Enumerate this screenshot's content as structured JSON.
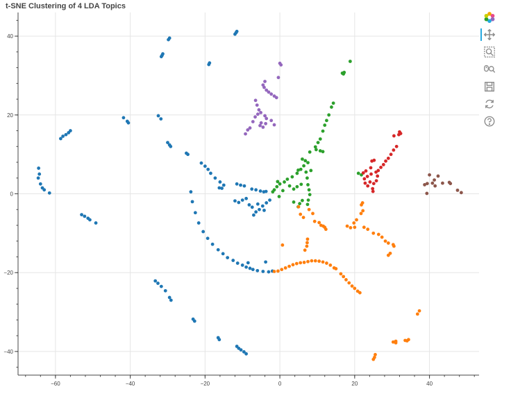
{
  "chart_title": "t-SNE Clustering of 4 LDA Topics",
  "toolbar": {
    "tools": [
      {
        "name": "bokeh-logo-icon"
      },
      {
        "name": "pan-tool-icon",
        "active": true
      },
      {
        "name": "box-zoom-tool-icon"
      },
      {
        "name": "wheel-zoom-tool-icon"
      },
      {
        "name": "save-tool-icon"
      },
      {
        "name": "reset-tool-icon"
      },
      {
        "name": "help-tool-icon"
      }
    ]
  },
  "colors": {
    "blue": "#1f77b4",
    "orange": "#ff7f0e",
    "green": "#2ca02c",
    "red": "#d62728",
    "purple": "#9467bd",
    "brown": "#8c564b",
    "grid": "#e5e5e5",
    "axis": "#444444"
  },
  "chart_data": {
    "type": "scatter",
    "title": "t-SNE Clustering of 4 LDA Topics",
    "xlabel": "",
    "ylabel": "",
    "xlim": [
      -70,
      54
    ],
    "ylim": [
      -46,
      46
    ],
    "xticks": [
      -60,
      -40,
      -20,
      0,
      20,
      40
    ],
    "yticks": [
      -40,
      -20,
      0,
      20,
      40
    ],
    "x_tick_labels": [
      "−60",
      "−40",
      "−20",
      "0",
      "20",
      "40"
    ],
    "y_tick_labels": [
      "−40",
      "−20",
      "0",
      "20",
      "40"
    ],
    "grid": true,
    "series": [
      {
        "color": "#1f77b4",
        "points": [
          [
            -11.5,
            41.2
          ],
          [
            -11.7,
            40.9
          ],
          [
            -12.0,
            40.5
          ],
          [
            -29.5,
            39.5
          ],
          [
            -29.8,
            39.1
          ],
          [
            -31.3,
            35.5
          ],
          [
            -31.5,
            35.1
          ],
          [
            -31.7,
            34.8
          ],
          [
            -18.8,
            33.2
          ],
          [
            -19.0,
            32.8
          ],
          [
            -41.8,
            19.3
          ],
          [
            -40.8,
            18.4
          ],
          [
            -40.5,
            18.0
          ],
          [
            -32.5,
            19.8
          ],
          [
            -31.8,
            19.0
          ],
          [
            -56.0,
            16.0
          ],
          [
            -56.5,
            15.5
          ],
          [
            -57.2,
            15.0
          ],
          [
            -58.0,
            14.6
          ],
          [
            -58.6,
            14.0
          ],
          [
            -30.0,
            13.0
          ],
          [
            -29.5,
            12.4
          ],
          [
            -29.2,
            12.0
          ],
          [
            -25.0,
            10.3
          ],
          [
            -24.6,
            10.0
          ],
          [
            -64.5,
            6.5
          ],
          [
            -64.3,
            5.0
          ],
          [
            -64.6,
            4.0
          ],
          [
            -64.0,
            2.5
          ],
          [
            -63.5,
            1.5
          ],
          [
            -63.0,
            1.0
          ],
          [
            -61.6,
            0.2
          ],
          [
            -21.0,
            7.8
          ],
          [
            -20.0,
            7.0
          ],
          [
            -19.2,
            6.2
          ],
          [
            -18.5,
            5.2
          ],
          [
            -17.3,
            4.0
          ],
          [
            -16.0,
            3.0
          ],
          [
            -15.0,
            2.2
          ],
          [
            -16.2,
            1.5
          ],
          [
            -15.5,
            1.4
          ],
          [
            -11.5,
            2.5
          ],
          [
            -10.5,
            2.2
          ],
          [
            -9.5,
            2.0
          ],
          [
            -7.5,
            1.2
          ],
          [
            -6.4,
            1.0
          ],
          [
            -5.2,
            0.7
          ],
          [
            -4.3,
            0.5
          ],
          [
            -3.7,
            0.6
          ],
          [
            -12.0,
            -1.8
          ],
          [
            -11.0,
            -2.2
          ],
          [
            -10.0,
            -1.6
          ],
          [
            -9.0,
            -1.2
          ],
          [
            -8.2,
            -2.8
          ],
          [
            -7.4,
            -3.4
          ],
          [
            -6.4,
            -4.6
          ],
          [
            -5.5,
            -4.0
          ],
          [
            -4.6,
            -3.1
          ],
          [
            -3.6,
            -2.3
          ],
          [
            -2.7,
            -1.6
          ],
          [
            -5.9,
            -2.6
          ],
          [
            -4.2,
            -4.2
          ],
          [
            -7.0,
            -5.4
          ],
          [
            -23.8,
            0.5
          ],
          [
            -23.4,
            -2.0
          ],
          [
            -22.6,
            -4.8
          ],
          [
            -21.7,
            -7.4
          ],
          [
            -20.5,
            -9.6
          ],
          [
            -19.3,
            -11.3
          ],
          [
            -18.0,
            -12.8
          ],
          [
            -16.5,
            -14.2
          ],
          [
            -15.2,
            -15.2
          ],
          [
            -14.0,
            -16.2
          ],
          [
            -12.5,
            -16.9
          ],
          [
            -11.3,
            -17.6
          ],
          [
            -10.0,
            -18.1
          ],
          [
            -9.0,
            -18.6
          ],
          [
            -8.0,
            -18.9
          ],
          [
            -7.2,
            -19.2
          ],
          [
            -6.0,
            -19.5
          ],
          [
            -4.5,
            -19.7
          ],
          [
            -3.0,
            -19.8
          ],
          [
            -2.0,
            -19.6
          ],
          [
            -8.5,
            -17.5
          ],
          [
            -3.8,
            -17.3
          ],
          [
            -53.0,
            -5.3
          ],
          [
            -52.2,
            -5.7
          ],
          [
            -51.3,
            -6.2
          ],
          [
            -50.8,
            -6.6
          ],
          [
            -49.2,
            -7.4
          ],
          [
            -33.3,
            -22.1
          ],
          [
            -32.6,
            -22.7
          ],
          [
            -31.7,
            -23.5
          ],
          [
            -30.6,
            -24.6
          ],
          [
            -29.5,
            -26.3
          ],
          [
            -29.1,
            -27.0
          ],
          [
            -23.2,
            -31.8
          ],
          [
            -22.8,
            -32.3
          ],
          [
            -16.5,
            -36.5
          ],
          [
            -16.2,
            -37.0
          ],
          [
            -11.5,
            -38.7
          ],
          [
            -11.0,
            -39.2
          ],
          [
            -10.4,
            -39.6
          ],
          [
            -9.6,
            -40.1
          ],
          [
            -9.0,
            -40.6
          ]
        ]
      },
      {
        "color": "#9467bd",
        "points": [
          [
            0.0,
            33.1
          ],
          [
            0.3,
            32.7
          ],
          [
            -0.4,
            29.5
          ],
          [
            -4.0,
            28.5
          ],
          [
            -4.5,
            27.6
          ],
          [
            -4.2,
            27.0
          ],
          [
            -3.6,
            26.3
          ],
          [
            -3.0,
            25.8
          ],
          [
            -2.3,
            25.3
          ],
          [
            -1.5,
            24.8
          ],
          [
            -0.9,
            24.4
          ],
          [
            -6.5,
            23.7
          ],
          [
            -6.1,
            22.5
          ],
          [
            -5.6,
            21.3
          ],
          [
            -5.1,
            20.6
          ],
          [
            -5.9,
            20.2
          ],
          [
            -6.6,
            19.5
          ],
          [
            -7.2,
            18.3
          ],
          [
            -5.0,
            18.0
          ],
          [
            -3.8,
            17.8
          ],
          [
            -3.6,
            19.1
          ],
          [
            -2.3,
            18.6
          ],
          [
            -1.5,
            17.5
          ],
          [
            -4.5,
            16.9
          ],
          [
            -8.0,
            16.7
          ],
          [
            -8.6,
            16.2
          ],
          [
            -9.2,
            15.2
          ],
          [
            -4.0,
            19.8
          ],
          [
            -5.3,
            17.3
          ]
        ]
      },
      {
        "color": "#2ca02c",
        "points": [
          [
            18.8,
            33.6
          ],
          [
            17.2,
            30.8
          ],
          [
            17.0,
            30.4
          ],
          [
            16.7,
            30.6
          ],
          [
            14.3,
            23.0
          ],
          [
            13.8,
            22.0
          ],
          [
            13.1,
            20.0
          ],
          [
            12.5,
            18.6
          ],
          [
            12.0,
            17.4
          ],
          [
            11.5,
            15.9
          ],
          [
            10.8,
            13.9
          ],
          [
            10.2,
            13.0
          ],
          [
            9.5,
            11.9
          ],
          [
            8.0,
            10.6
          ],
          [
            9.7,
            11.2
          ],
          [
            10.8,
            10.9
          ],
          [
            11.5,
            10.7
          ],
          [
            6.8,
            8.4
          ],
          [
            6.4,
            7.1
          ],
          [
            5.6,
            6.2
          ],
          [
            4.6,
            5.2
          ],
          [
            3.3,
            4.3
          ],
          [
            2.0,
            3.7
          ],
          [
            1.2,
            3.0
          ],
          [
            0.0,
            2.5
          ],
          [
            -0.8,
            1.8
          ],
          [
            -1.5,
            1.0
          ],
          [
            -1.9,
            0.5
          ],
          [
            -0.6,
            3.1
          ],
          [
            -0.2,
            -0.7
          ],
          [
            0.8,
            0.8
          ],
          [
            2.6,
            2.0
          ],
          [
            3.7,
            1.2
          ],
          [
            4.6,
            1.8
          ],
          [
            5.7,
            2.4
          ],
          [
            7.0,
            5.5
          ],
          [
            7.3,
            4.0
          ],
          [
            7.5,
            2.3
          ],
          [
            7.8,
            1.0
          ],
          [
            8.0,
            -0.2
          ],
          [
            7.6,
            -1.6
          ],
          [
            7.4,
            -2.7
          ],
          [
            6.0,
            -1.7
          ],
          [
            5.3,
            -2.5
          ],
          [
            4.9,
            -3.3
          ],
          [
            7.5,
            7.9
          ],
          [
            8.3,
            5.9
          ],
          [
            3.7,
            -2.1
          ],
          [
            4.9,
            6.0
          ],
          [
            6.0,
            8.8
          ],
          [
            21.0,
            5.2
          ],
          [
            21.8,
            4.8
          ]
        ]
      },
      {
        "color": "#ff7f0e",
        "points": [
          [
            22.1,
            -2.3
          ],
          [
            21.8,
            -2.8
          ],
          [
            22.2,
            -4.3
          ],
          [
            21.7,
            -5.0
          ],
          [
            20.5,
            -6.6
          ],
          [
            19.8,
            -7.4
          ],
          [
            18.9,
            -8.6
          ],
          [
            18.0,
            -8.2
          ],
          [
            20.0,
            -8.5
          ],
          [
            22.5,
            -8.5
          ],
          [
            23.5,
            -9.0
          ],
          [
            25.0,
            -10.0
          ],
          [
            26.4,
            -10.3
          ],
          [
            27.3,
            -11.0
          ],
          [
            28.2,
            -12.0
          ],
          [
            29.0,
            -12.5
          ],
          [
            30.3,
            -12.9
          ],
          [
            30.5,
            -13.3
          ],
          [
            29.5,
            -15.1
          ],
          [
            29.0,
            -15.6
          ],
          [
            5.0,
            -3.3
          ],
          [
            5.5,
            -5.2
          ],
          [
            6.3,
            -6.0
          ],
          [
            7.8,
            -4.0
          ],
          [
            8.8,
            -5.0
          ],
          [
            9.3,
            -7.0
          ],
          [
            10.5,
            -7.3
          ],
          [
            11.0,
            -8.0
          ],
          [
            12.0,
            -8.5
          ],
          [
            12.3,
            -9.0
          ],
          [
            11.6,
            -8.2
          ],
          [
            7.4,
            -11.5
          ],
          [
            7.3,
            -12.4
          ],
          [
            7.2,
            -13.3
          ],
          [
            6.7,
            -14.3
          ],
          [
            0.7,
            -13.0
          ],
          [
            -1.5,
            -19.7
          ],
          [
            -0.5,
            -19.6
          ],
          [
            0.5,
            -19.2
          ],
          [
            1.5,
            -18.8
          ],
          [
            2.5,
            -18.4
          ],
          [
            3.5,
            -18.0
          ],
          [
            4.5,
            -17.7
          ],
          [
            5.5,
            -17.5
          ],
          [
            6.5,
            -17.4
          ],
          [
            7.5,
            -17.2
          ],
          [
            8.5,
            -17.0
          ],
          [
            9.5,
            -17.0
          ],
          [
            10.5,
            -17.1
          ],
          [
            11.5,
            -17.3
          ],
          [
            12.5,
            -17.6
          ],
          [
            13.5,
            -18.1
          ],
          [
            14.5,
            -18.8
          ],
          [
            15.0,
            -19.0
          ],
          [
            16.3,
            -20.3
          ],
          [
            17.0,
            -21.0
          ],
          [
            17.7,
            -21.8
          ],
          [
            18.5,
            -22.6
          ],
          [
            19.3,
            -23.4
          ],
          [
            20.0,
            -24.0
          ],
          [
            20.8,
            -24.7
          ],
          [
            21.4,
            -25.1
          ],
          [
            37.3,
            -29.7
          ],
          [
            36.8,
            -30.5
          ],
          [
            34.4,
            -37.0
          ],
          [
            34.0,
            -37.3
          ],
          [
            33.5,
            -37.2
          ],
          [
            31.0,
            -37.4
          ],
          [
            30.3,
            -37.6
          ],
          [
            31.0,
            -37.8
          ],
          [
            25.5,
            -40.8
          ],
          [
            25.3,
            -41.5
          ],
          [
            25.0,
            -42.0
          ]
        ]
      },
      {
        "color": "#d62728",
        "points": [
          [
            32.0,
            15.7
          ],
          [
            32.3,
            15.3
          ],
          [
            31.8,
            15.0
          ],
          [
            30.5,
            14.7
          ],
          [
            31.2,
            12.0
          ],
          [
            30.4,
            11.1
          ],
          [
            29.7,
            10.0
          ],
          [
            29.0,
            9.0
          ],
          [
            28.3,
            8.3
          ],
          [
            27.7,
            7.4
          ],
          [
            27.0,
            6.7
          ],
          [
            26.3,
            5.9
          ],
          [
            25.7,
            5.5
          ],
          [
            24.4,
            5.0
          ],
          [
            23.4,
            4.4
          ],
          [
            22.6,
            3.8
          ],
          [
            22.8,
            2.7
          ],
          [
            23.5,
            2.0
          ],
          [
            24.8,
            1.3
          ],
          [
            25.1,
            2.6
          ],
          [
            25.8,
            3.3
          ],
          [
            26.1,
            4.5
          ],
          [
            24.6,
            8.3
          ],
          [
            25.2,
            8.5
          ],
          [
            22.3,
            5.3
          ],
          [
            23.0,
            5.8
          ],
          [
            24.1,
            3.0
          ],
          [
            24.9,
            0.6
          ],
          [
            24.3,
            6.6
          ]
        ]
      },
      {
        "color": "#8c564b",
        "points": [
          [
            39.4,
            2.6
          ],
          [
            38.7,
            2.3
          ],
          [
            40.0,
            4.8
          ],
          [
            41.3,
            3.5
          ],
          [
            42.3,
            4.5
          ],
          [
            41.5,
            2.0
          ],
          [
            43.5,
            2.7
          ],
          [
            45.3,
            2.9
          ],
          [
            45.6,
            2.6
          ],
          [
            47.5,
            0.9
          ],
          [
            48.5,
            0.3
          ],
          [
            39.3,
            0.1
          ],
          [
            40.8,
            2.7
          ]
        ]
      }
    ]
  }
}
